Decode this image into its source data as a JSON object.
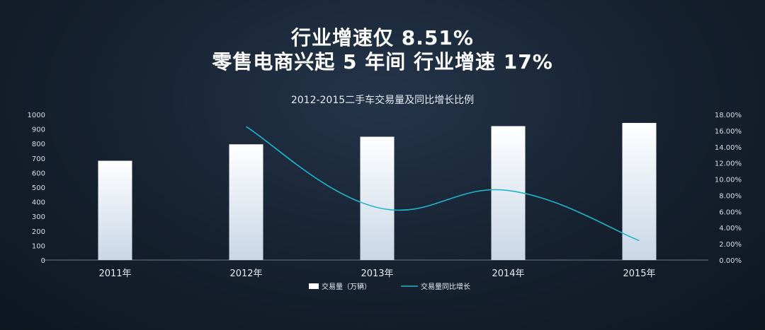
{
  "headline": {
    "line1": "行业增速仅 8.51%",
    "line2": "零售电商兴起 5 年间 行业增速 17%"
  },
  "chart_data": {
    "type": "bar",
    "title": "2012-2015二手车交易量及同比增长比例",
    "categories": [
      "2011年",
      "2012年",
      "2013年",
      "2014年",
      "2015年"
    ],
    "series": [
      {
        "name": "交易量（万辆）",
        "type": "bar",
        "axis": "left",
        "values": [
          682,
          795,
          847,
          920,
          942
        ]
      },
      {
        "name": "交易量同比增长",
        "type": "line",
        "axis": "right",
        "values": [
          null,
          16.5,
          6.5,
          8.6,
          2.4
        ]
      }
    ],
    "yleft": {
      "ylim": [
        0,
        1000
      ],
      "ticks": [
        "0",
        "100",
        "200",
        "300",
        "400",
        "500",
        "600",
        "700",
        "800",
        "900",
        "1000"
      ]
    },
    "yright": {
      "ylim": [
        0,
        18
      ],
      "ticks": [
        "0.00%",
        "2.00%",
        "4.00%",
        "6.00%",
        "8.00%",
        "10.00%",
        "12.00%",
        "14.00%",
        "16.00%",
        "18.00%"
      ]
    },
    "legend": "bottom-center",
    "grid": false,
    "colors": {
      "bar": "#ffffff",
      "line": "#1fb6c9",
      "axis": "#6a7786"
    }
  }
}
